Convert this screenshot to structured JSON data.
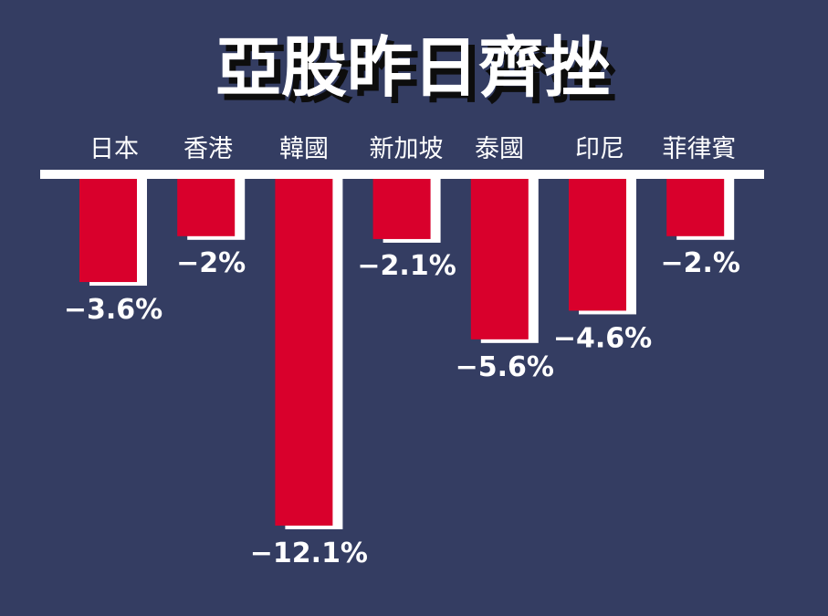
{
  "chart_data": {
    "type": "bar",
    "title": "亞股昨日齊挫",
    "categories": [
      "日本",
      "香港",
      "韓國",
      "新加坡",
      "泰國",
      "印尼",
      "菲律賓"
    ],
    "values": [
      -3.6,
      -2,
      -12.1,
      -2.1,
      -5.6,
      -4.6,
      -2
    ],
    "value_labels": [
      "−3.6%",
      "−2%",
      "−12.1%",
      "−2.1%",
      "−5.6%",
      "−4.6%",
      "−2.%"
    ],
    "ylim": [
      -12.1,
      0
    ],
    "grid": false,
    "legend": "none",
    "colors": {
      "background": "#343d62",
      "bar": "#d9002c",
      "bar_shadow": "#ffffff",
      "text": "#ffffff",
      "title_shadow": "#0d0d0d"
    }
  }
}
